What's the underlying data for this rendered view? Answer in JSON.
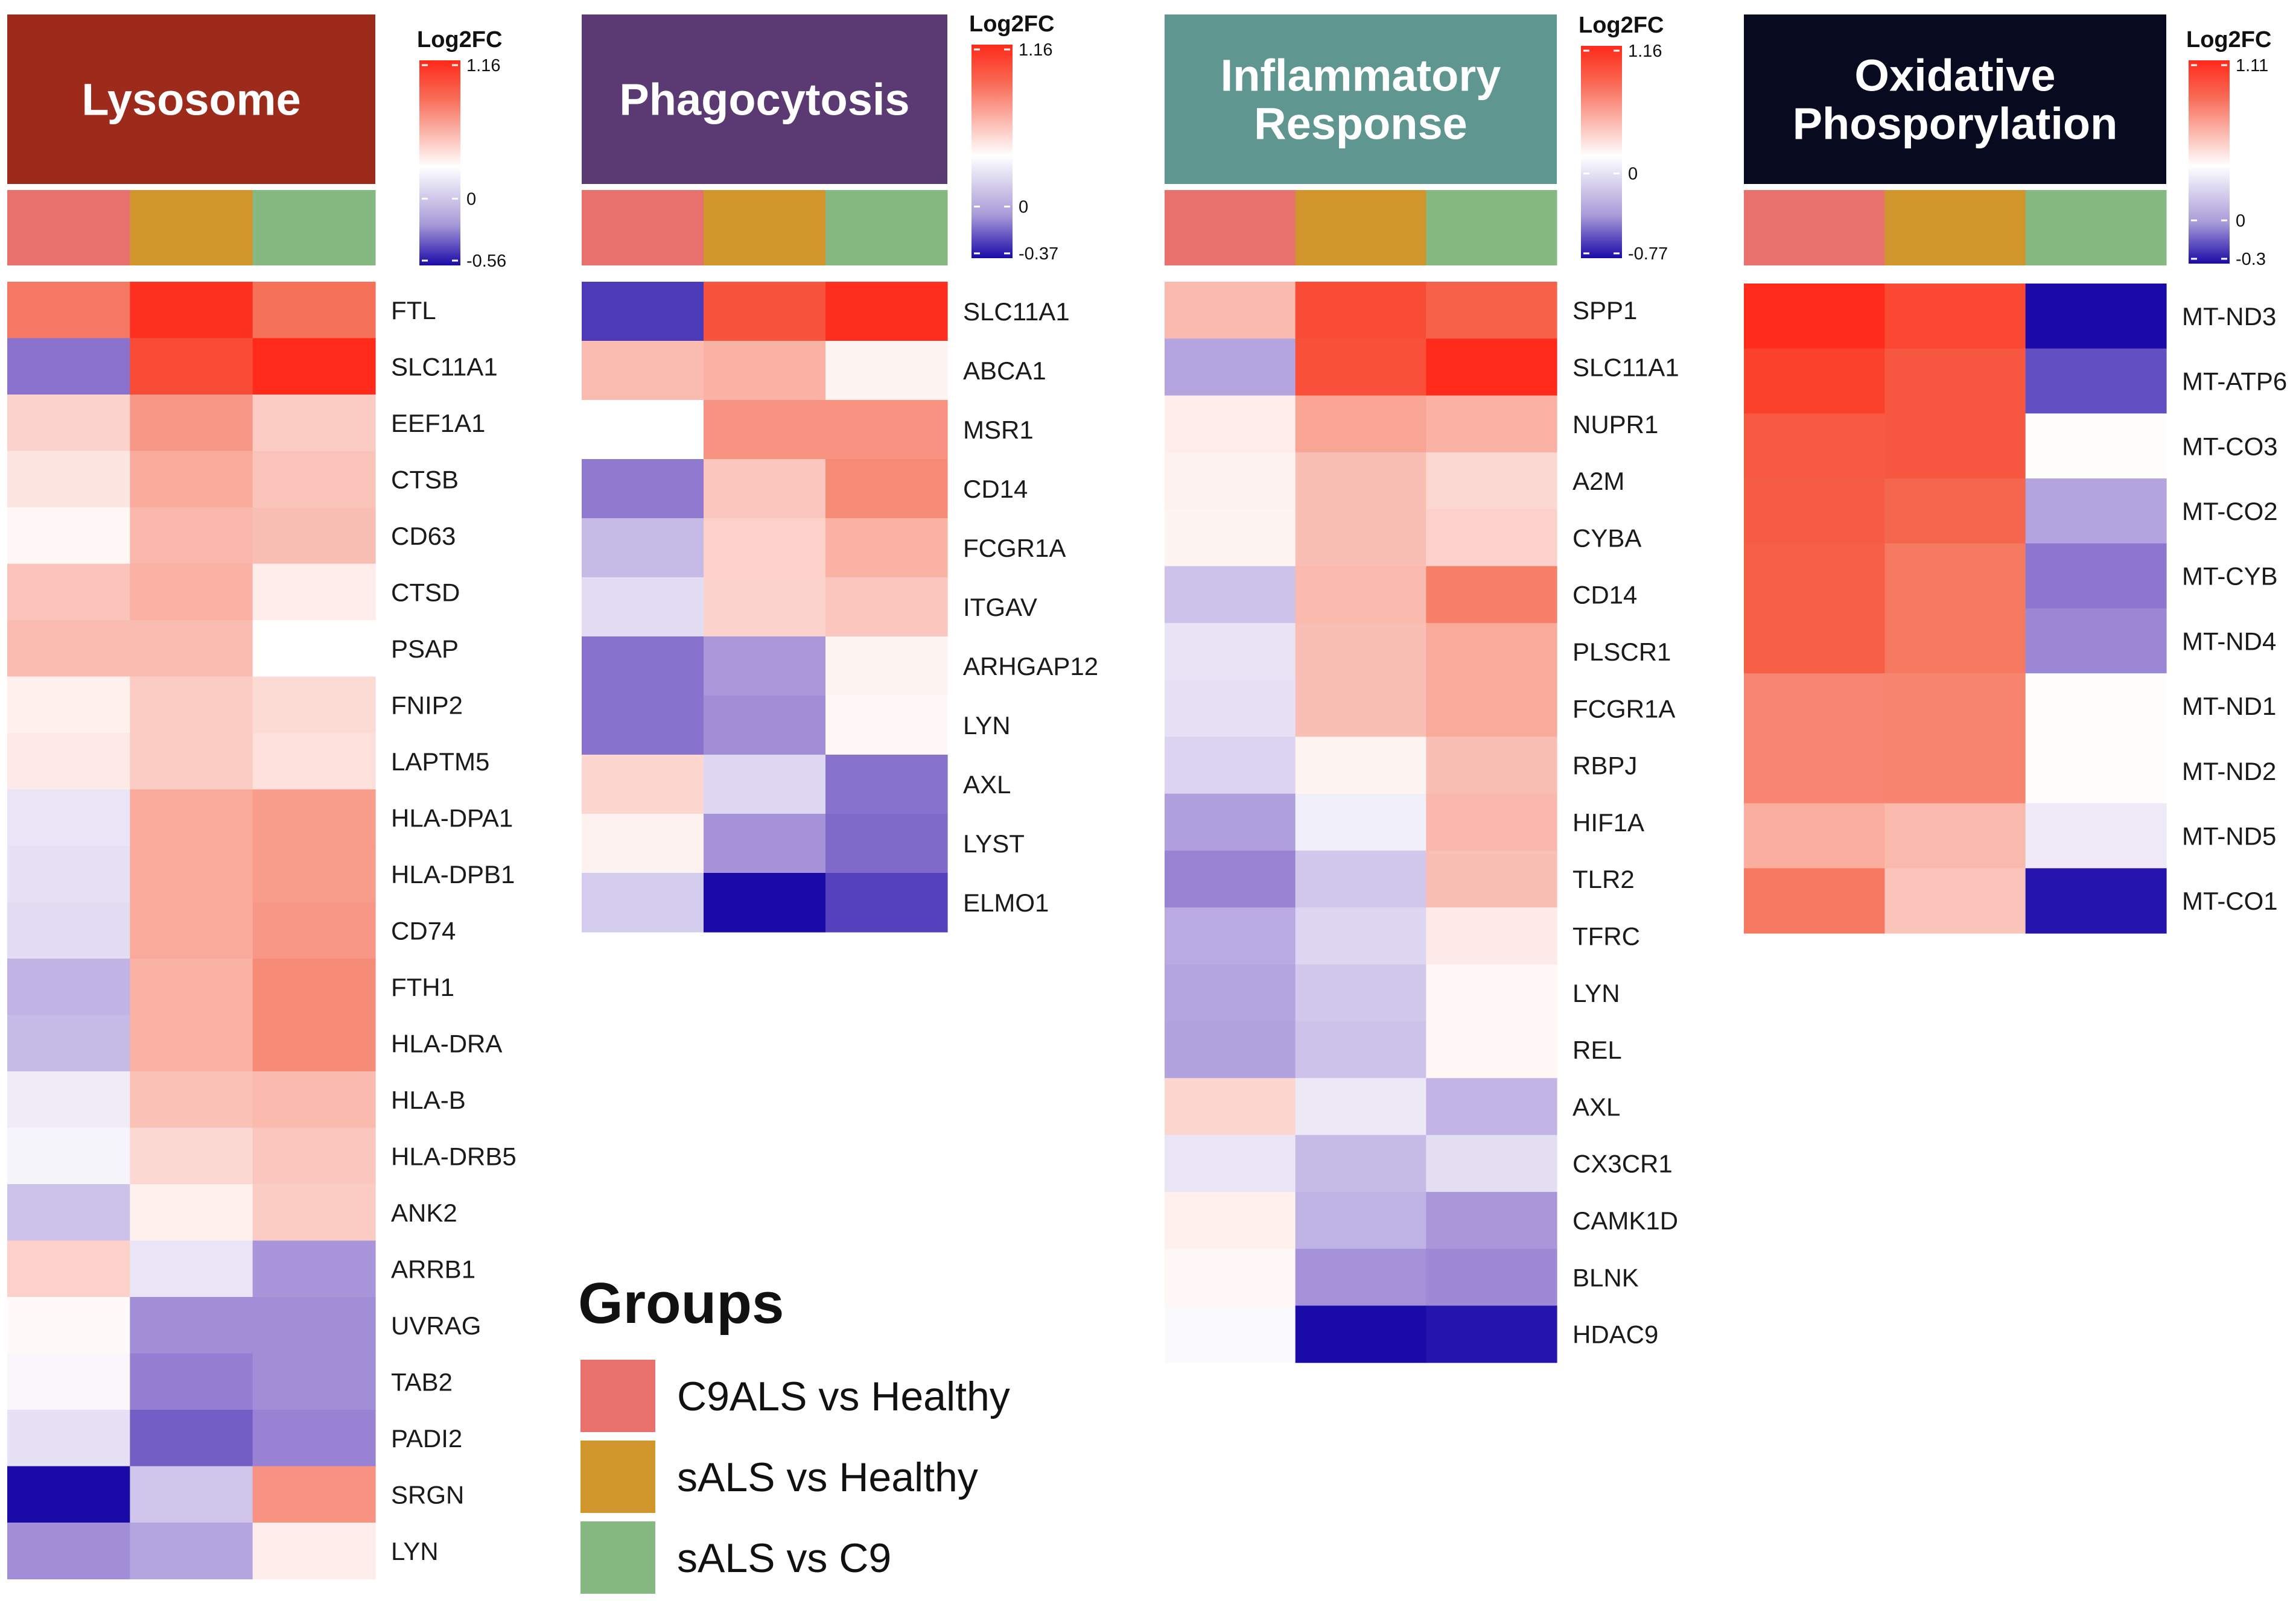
{
  "colors": {
    "high": "#ff2a1a",
    "mid": "#ffffff",
    "low": "#1a0aa8"
  },
  "groups": {
    "title": "Groups",
    "items": [
      {
        "label": "C9ALS vs Healthy",
        "color": "#e8716d"
      },
      {
        "label": "sALS vs Healthy",
        "color": "#d0962c"
      },
      {
        "label": "sALS vs C9",
        "color": "#86b882"
      }
    ]
  },
  "chart_data": [
    {
      "type": "heatmap",
      "title": "Lysosome",
      "header_color": "#9d2b1b",
      "legend": {
        "title": "Log2FC",
        "max": 1.16,
        "mid": 0,
        "min": -0.56,
        "max_label": "1.16",
        "mid_label": "0",
        "min_label": "-0.56"
      },
      "columns": [
        "C9ALS vs Healthy",
        "sALS vs Healthy",
        "sALS vs C9"
      ],
      "rows": [
        "FTL",
        "SLC11A1",
        "EEF1A1",
        "CTSB",
        "CD63",
        "CTSD",
        "PSAP",
        "FNIP2",
        "LAPTM5",
        "HLA-DPA1",
        "HLA-DPB1",
        "CD74",
        "FTH1",
        "HLA-DRA",
        "HLA-B",
        "HLA-DRB5",
        "ANK2",
        "ARRB1",
        "UVRAG",
        "TAB2",
        "PADI2",
        "SRGN",
        "LYN"
      ],
      "values": [
        [
          0.52,
          1.1,
          0.55
        ],
        [
          -0.36,
          0.85,
          1.16
        ],
        [
          0.17,
          0.4,
          0.2
        ],
        [
          0.1,
          0.33,
          0.23
        ],
        [
          0.03,
          0.28,
          0.25
        ],
        [
          0.23,
          0.3,
          0.07
        ],
        [
          0.26,
          0.26,
          0.0
        ],
        [
          0.06,
          0.2,
          0.14
        ],
        [
          0.08,
          0.2,
          0.12
        ],
        [
          -0.07,
          0.33,
          0.38
        ],
        [
          -0.08,
          0.33,
          0.38
        ],
        [
          -0.09,
          0.33,
          0.4
        ],
        [
          -0.2,
          0.3,
          0.45
        ],
        [
          -0.18,
          0.3,
          0.45
        ],
        [
          -0.05,
          0.24,
          0.27
        ],
        [
          -0.03,
          0.15,
          0.22
        ],
        [
          -0.16,
          0.06,
          0.2
        ],
        [
          0.18,
          -0.07,
          -0.28
        ],
        [
          0.02,
          -0.3,
          -0.3
        ],
        [
          -0.02,
          -0.34,
          -0.3
        ],
        [
          -0.08,
          -0.4,
          -0.33
        ],
        [
          -0.56,
          -0.15,
          0.42
        ],
        [
          -0.3,
          -0.24,
          0.07
        ]
      ]
    },
    {
      "type": "heatmap",
      "title": "Phagocytosis",
      "header_color": "#5b3a73",
      "legend": {
        "title": "Log2FC",
        "max": 1.16,
        "mid": 0,
        "min": -0.37,
        "max_label": "1.16",
        "mid_label": "0",
        "min_label": "-0.37"
      },
      "columns": [
        "C9ALS vs Healthy",
        "sALS vs Healthy",
        "sALS vs C9"
      ],
      "rows": [
        "SLC11A1",
        "ABCA1",
        "MSR1",
        "CD14",
        "FCGR1A",
        "ITGAV",
        "ARHGAP12",
        "LYN",
        "AXL",
        "LYST",
        "ELMO1"
      ],
      "values": [
        [
          -0.31,
          0.78,
          1.12
        ],
        [
          0.26,
          0.3,
          0.04
        ],
        [
          0.0,
          0.42,
          0.42
        ],
        [
          -0.23,
          0.22,
          0.45
        ],
        [
          -0.12,
          0.18,
          0.3
        ],
        [
          -0.06,
          0.17,
          0.22
        ],
        [
          -0.24,
          -0.18,
          0.04
        ],
        [
          -0.24,
          -0.2,
          0.03
        ],
        [
          0.16,
          -0.07,
          -0.24
        ],
        [
          0.05,
          -0.19,
          -0.25
        ],
        [
          -0.09,
          -0.37,
          -0.3
        ]
      ]
    },
    {
      "type": "heatmap",
      "title": "Inflammatory Response",
      "title_lines": [
        "Inflammatory",
        "Response"
      ],
      "header_color": "#5f9790",
      "legend": {
        "title": "Log2FC",
        "max": 1.16,
        "mid": 0,
        "min": -0.77,
        "max_label": "1.16",
        "mid_label": "0",
        "min_label": "-0.77"
      },
      "columns": [
        "C9ALS vs Healthy",
        "sALS vs Healthy",
        "sALS vs C9"
      ],
      "rows": [
        "SPP1",
        "SLC11A1",
        "NUPR1",
        "A2M",
        "CYBA",
        "CD14",
        "PLSCR1",
        "FCGR1A",
        "RBPJ",
        "HIF1A",
        "TLR2",
        "TFRC",
        "LYN",
        "REL",
        "AXL",
        "CX3CR1",
        "CAMK1D",
        "BLNK",
        "HDAC9"
      ],
      "values": [
        [
          0.27,
          0.85,
          0.65
        ],
        [
          -0.33,
          0.82,
          1.16
        ],
        [
          0.07,
          0.35,
          0.3
        ],
        [
          0.05,
          0.25,
          0.15
        ],
        [
          0.04,
          0.25,
          0.18
        ],
        [
          -0.22,
          0.27,
          0.5
        ],
        [
          -0.1,
          0.25,
          0.33
        ],
        [
          -0.11,
          0.25,
          0.33
        ],
        [
          -0.16,
          0.04,
          0.25
        ],
        [
          -0.35,
          -0.06,
          0.28
        ],
        [
          -0.45,
          -0.2,
          0.25
        ],
        [
          -0.31,
          -0.15,
          0.08
        ],
        [
          -0.33,
          -0.2,
          0.03
        ],
        [
          -0.34,
          -0.22,
          0.03
        ],
        [
          0.16,
          -0.08,
          -0.27
        ],
        [
          -0.09,
          -0.25,
          -0.12
        ],
        [
          0.06,
          -0.28,
          -0.38
        ],
        [
          0.03,
          -0.4,
          -0.43
        ],
        [
          -0.02,
          -0.77,
          -0.74
        ]
      ]
    },
    {
      "type": "heatmap",
      "title": "Oxidative Phosporylation",
      "title_lines": [
        "Oxidative",
        "Phosporylation"
      ],
      "header_color": "#080a20",
      "legend": {
        "title": "Log2FC",
        "max": 1.11,
        "mid": 0,
        "min": -0.3,
        "max_label": "1.11",
        "mid_label": "0",
        "min_label": "-0.3"
      },
      "columns": [
        "C9ALS vs Healthy",
        "sALS vs Healthy",
        "sALS vs C9"
      ],
      "rows": [
        "MT-ND3",
        "MT-ATP6",
        "MT-CO3",
        "MT-CO2",
        "MT-CYB",
        "MT-ND4",
        "MT-ND1",
        "MT-ND2",
        "MT-ND5",
        "MT-CO1"
      ],
      "values": [
        [
          1.1,
          0.85,
          -0.3
        ],
        [
          0.92,
          0.72,
          -0.23
        ],
        [
          0.7,
          0.72,
          0.01
        ],
        [
          0.68,
          0.58,
          -0.13
        ],
        [
          0.66,
          0.5,
          -0.19
        ],
        [
          0.66,
          0.5,
          -0.17
        ],
        [
          0.45,
          0.46,
          0.01
        ],
        [
          0.45,
          0.46,
          0.01
        ],
        [
          0.3,
          0.26,
          -0.03
        ],
        [
          0.5,
          0.22,
          -0.29
        ]
      ]
    }
  ]
}
